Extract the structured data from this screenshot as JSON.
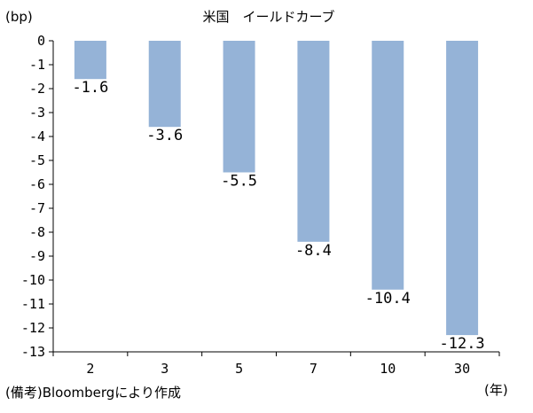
{
  "chart_data": {
    "type": "bar",
    "title": "米国　イールドカーブ",
    "ylabel": "(bp)",
    "xlabel": "(年)",
    "categories": [
      "2",
      "3",
      "5",
      "7",
      "10",
      "30"
    ],
    "values": [
      -1.6,
      -3.6,
      -5.5,
      -8.4,
      -10.4,
      -12.3
    ],
    "data_labels": [
      "-1.6",
      "-3.6",
      "-5.5",
      "-8.4",
      "-10.4",
      "-12.3"
    ],
    "yticks": [
      "0",
      "-1",
      "-2",
      "-3",
      "-4",
      "-5",
      "-6",
      "-7",
      "-8",
      "-9",
      "-10",
      "-11",
      "-12",
      "-13"
    ],
    "ylim": [
      -13,
      0
    ],
    "bar_color": "#95b3d7",
    "grid": false
  },
  "footer": {
    "source": "(備考)Bloombergにより作成"
  }
}
